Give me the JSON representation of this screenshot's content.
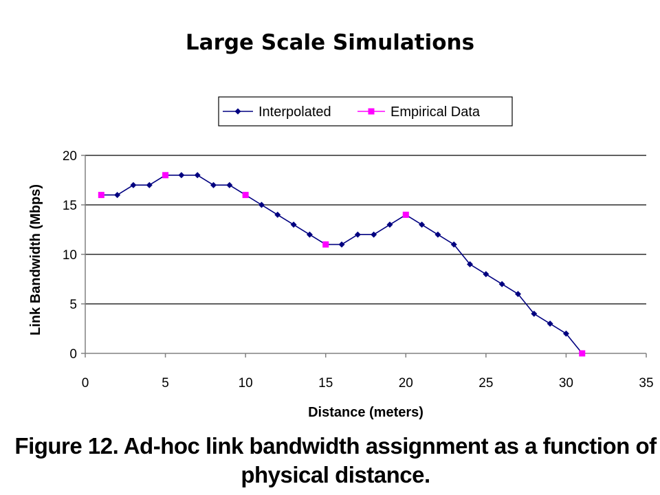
{
  "slide": {
    "title": "Large Scale Simulations",
    "caption": "Figure 12. Ad-hoc link bandwidth assignment as a function of physical distance."
  },
  "chart_data": {
    "type": "line",
    "xlabel": "Distance (meters)",
    "ylabel": "Link Bandwidth (Mbps)",
    "xlim": [
      0,
      35
    ],
    "ylim": [
      0,
      20
    ],
    "x_ticks": [
      0,
      5,
      10,
      15,
      20,
      25,
      30,
      35
    ],
    "y_ticks": [
      0,
      5,
      10,
      15,
      20
    ],
    "grid": "horizontal",
    "legend_position": "top",
    "series": [
      {
        "name": "Interpolated",
        "color": "#000080",
        "marker": "diamond",
        "x": [
          1,
          2,
          3,
          4,
          5,
          6,
          7,
          8,
          9,
          10,
          11,
          12,
          13,
          14,
          15,
          16,
          17,
          18,
          19,
          20,
          21,
          22,
          23,
          24,
          25,
          26,
          27,
          28,
          29,
          30,
          31
        ],
        "y": [
          16,
          16,
          17,
          17,
          18,
          18,
          18,
          17,
          17,
          16,
          15,
          14,
          13,
          12,
          11,
          11,
          12,
          12,
          13,
          14,
          13,
          12,
          11,
          9,
          8,
          7,
          6,
          4,
          3,
          2,
          0
        ]
      },
      {
        "name": "Empirical Data",
        "color": "#ff00ff",
        "marker": "square",
        "x": [
          1,
          5,
          10,
          15,
          20,
          31
        ],
        "y": [
          16,
          18,
          16,
          11,
          14,
          0
        ]
      }
    ]
  }
}
